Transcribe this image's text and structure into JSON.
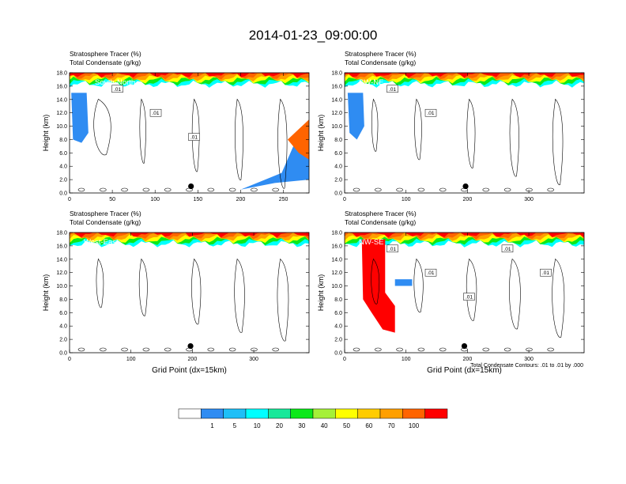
{
  "page_title": "2014-01-23_09:00:00",
  "field_label": "Stratosphere Tracer   (%)",
  "contour_label": "Total Condensate   (g/kg)",
  "contour_note": "Total Condensate Contours: .01 to .01 by .000",
  "colorbar": {
    "labels": [
      "1",
      "5",
      "10",
      "20",
      "30",
      "40",
      "50",
      "60",
      "70",
      "100"
    ],
    "colors": [
      "#ffffff",
      "#2f8cf2",
      "#1fbff7",
      "#00ffff",
      "#18e89a",
      "#0ce81a",
      "#a5f038",
      "#ffff00",
      "#ffcc00",
      "#ff9f00",
      "#ff6400",
      "#ff0000"
    ]
  },
  "chart_data": [
    {
      "type": "contour",
      "panel": "South-North",
      "panel_label": "South-North",
      "ylabel": "Height (km)",
      "xlabel": "",
      "xlim": [
        0,
        280
      ],
      "ylim": [
        0,
        18
      ],
      "xticks": [
        "0",
        "50",
        "100",
        "150",
        "200",
        "250"
      ],
      "yticks": [
        "0.0",
        "2.0",
        "4.0",
        "6.0",
        "8.0",
        "10.0",
        "12.0",
        "14.0",
        "16.0",
        "18.0"
      ],
      "contour_labels": [
        ".01",
        ".01",
        ".01"
      ],
      "tracer_top_km": 16.3,
      "marker_x": 142,
      "marker_y": 1.0
    },
    {
      "type": "contour",
      "panel": "SW-NE",
      "panel_label": "SW-NE",
      "ylabel": "Height (km)",
      "xlabel": "",
      "xlim": [
        0,
        390
      ],
      "ylim": [
        0,
        18
      ],
      "xticks": [
        "0",
        "100",
        "200",
        "300"
      ],
      "yticks": [
        "0.0",
        "2.0",
        "4.0",
        "6.0",
        "8.0",
        "10.0",
        "12.0",
        "14.0",
        "16.0",
        "18.0"
      ],
      "contour_labels": [
        ".01",
        ".01"
      ],
      "tracer_top_km": 16.3,
      "marker_x": 197,
      "marker_y": 1.0
    },
    {
      "type": "contour",
      "panel": "West-East",
      "panel_label": "West-East",
      "ylabel": "Height (km)",
      "xlabel": "Grid Point (dx=15km)",
      "xlim": [
        0,
        390
      ],
      "ylim": [
        0,
        18
      ],
      "xticks": [
        "0",
        "100",
        "200",
        "300"
      ],
      "yticks": [
        "0.0",
        "2.0",
        "4.0",
        "6.0",
        "8.0",
        "10.0",
        "12.0",
        "14.0",
        "16.0",
        "18.0"
      ],
      "contour_labels": [],
      "tracer_top_km": 16.3,
      "marker_x": 197,
      "marker_y": 1.0
    },
    {
      "type": "contour",
      "panel": "NW-SE",
      "panel_label": "NW-SE",
      "ylabel": "Height (km)",
      "xlabel": "Grid Point (dx=15km)",
      "xlim": [
        0,
        390
      ],
      "ylim": [
        0,
        18
      ],
      "xticks": [
        "0",
        "100",
        "200",
        "300"
      ],
      "yticks": [
        "0.0",
        "2.0",
        "4.0",
        "6.0",
        "8.0",
        "10.0",
        "12.0",
        "14.0",
        "16.0",
        "18.0"
      ],
      "contour_labels": [
        ".01",
        ".01",
        ".01",
        ".01",
        ".01"
      ],
      "tracer_top_km": 16.3,
      "marker_x": 195,
      "marker_y": 1.0
    }
  ]
}
